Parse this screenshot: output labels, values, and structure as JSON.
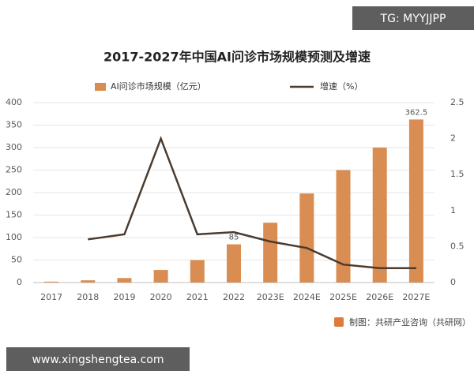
{
  "chart_data": {
    "type": "bar-line",
    "title": "2017-2027年中国AI问诊市场规模预测及增速",
    "categories": [
      "2017",
      "2018",
      "2019",
      "2020",
      "2021",
      "2022",
      "2023E",
      "2024E",
      "2025E",
      "2026E",
      "2027E"
    ],
    "series": [
      {
        "name": "AI问诊市场规模（亿元）",
        "type": "bar",
        "color": "#d98d52",
        "values": [
          2,
          5,
          10,
          28,
          50,
          85,
          133,
          198,
          250,
          300,
          362.5
        ],
        "value_labels": [
          null,
          null,
          null,
          null,
          null,
          "85",
          null,
          null,
          null,
          null,
          "362.5"
        ]
      },
      {
        "name": "增速（%）",
        "type": "line",
        "axis": "y2",
        "color": "#4b3b2f",
        "values": [
          null,
          0.6,
          0.67,
          2.0,
          0.67,
          0.7,
          0.57,
          0.48,
          0.25,
          0.2,
          0.2
        ]
      }
    ],
    "ylim": [
      0,
      400
    ],
    "yticks": [
      0,
      50,
      100,
      150,
      200,
      250,
      300,
      350,
      400
    ],
    "y2lim": [
      0,
      2.5
    ],
    "y2ticks": [
      0,
      0.5,
      1,
      1.5,
      2,
      2.5
    ],
    "grid": true,
    "source": "制图：共研产业咨询（共研网）",
    "badges": [
      "TG: MYYJJPP",
      "www.xingshengtea.com"
    ]
  }
}
